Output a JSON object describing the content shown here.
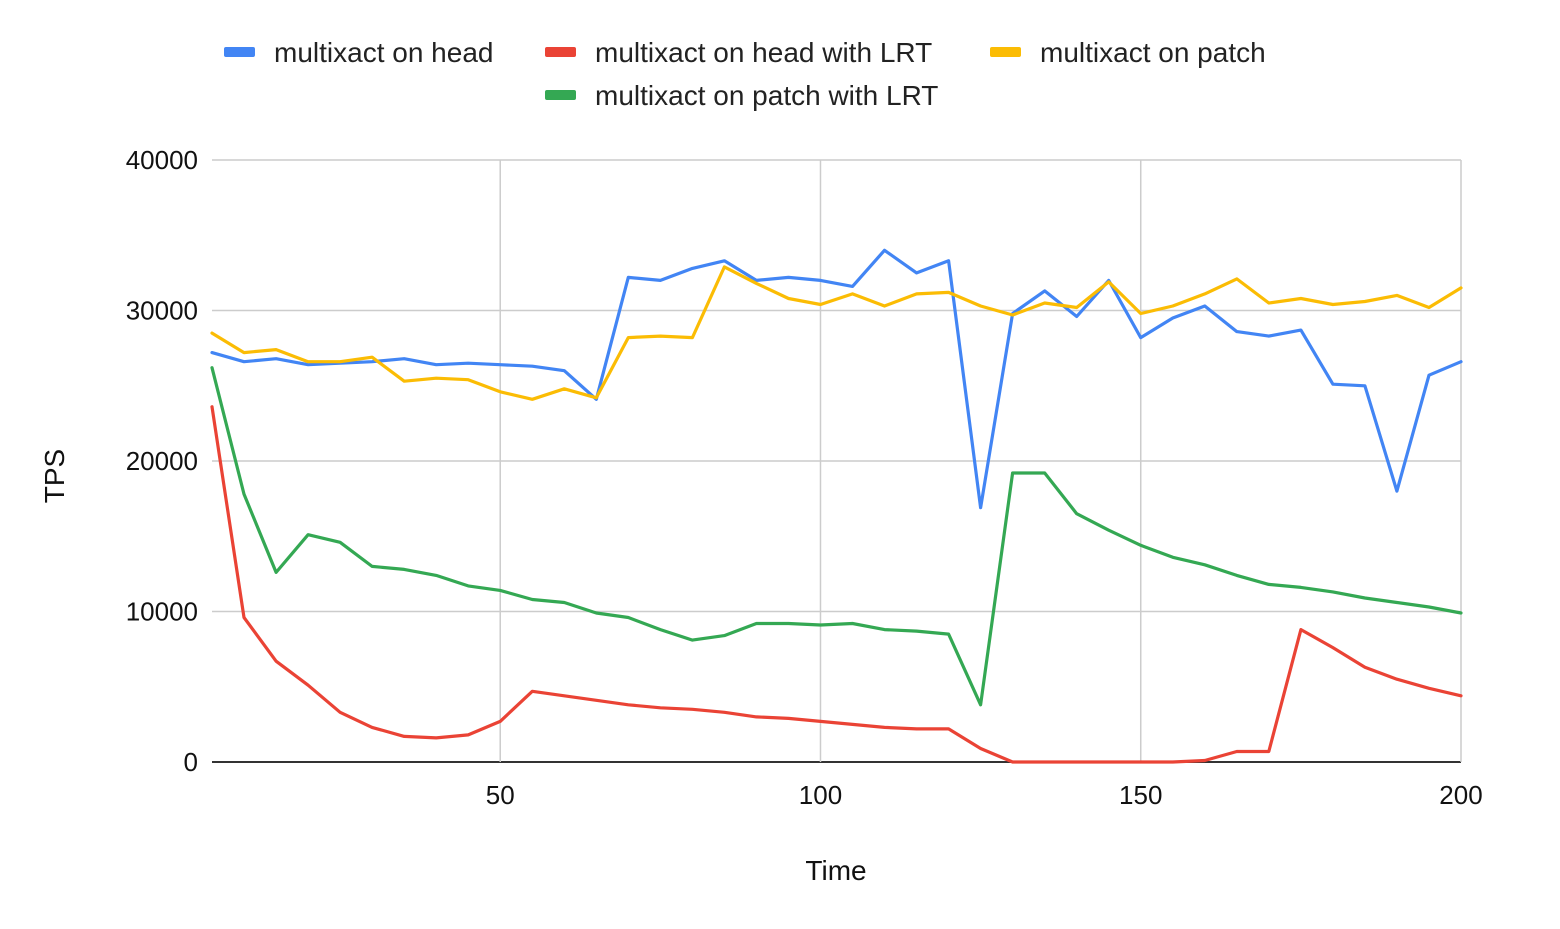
{
  "chart_data": {
    "type": "line",
    "title": "",
    "xlabel": "Time",
    "ylabel": "TPS",
    "xlim": [
      5,
      200
    ],
    "ylim": [
      0,
      40000
    ],
    "x_ticks": [
      50,
      100,
      150,
      200
    ],
    "y_ticks": [
      0,
      10000,
      20000,
      30000,
      40000
    ],
    "grid": true,
    "legend_position": "top",
    "x": [
      5,
      10,
      15,
      20,
      25,
      30,
      35,
      40,
      45,
      50,
      55,
      60,
      65,
      70,
      75,
      80,
      85,
      90,
      95,
      100,
      105,
      110,
      115,
      120,
      125,
      130,
      135,
      140,
      145,
      150,
      155,
      160,
      165,
      170,
      175,
      180,
      185,
      190,
      195,
      200
    ],
    "series": [
      {
        "name": "multixact on head",
        "color": "#4285f4",
        "values": [
          27200,
          26600,
          26800,
          26400,
          26500,
          26600,
          26800,
          26400,
          26500,
          26400,
          26300,
          26000,
          24100,
          32200,
          32000,
          32800,
          33300,
          32000,
          32200,
          32000,
          31600,
          34000,
          32500,
          33300,
          16900,
          29800,
          31300,
          29600,
          32000,
          28200,
          29500,
          30300,
          28600,
          28300,
          28700,
          25100,
          25000,
          18000,
          25700,
          26600
        ]
      },
      {
        "name": "multixact on head with LRT",
        "color": "#ea4335",
        "values": [
          23600,
          9600,
          6700,
          5100,
          3300,
          2300,
          1700,
          1600,
          1800,
          2700,
          4700,
          4400,
          4100,
          3800,
          3600,
          3500,
          3300,
          3000,
          2900,
          2700,
          2500,
          2300,
          2200,
          2200,
          900,
          0,
          0,
          0,
          0,
          0,
          0,
          100,
          700,
          700,
          8800,
          7600,
          6300,
          5500,
          4900,
          4400
        ]
      },
      {
        "name": "multixact on patch",
        "color": "#fbbc04",
        "values": [
          28500,
          27200,
          27400,
          26600,
          26600,
          26900,
          25300,
          25500,
          25400,
          24600,
          24100,
          24800,
          24200,
          28200,
          28300,
          28200,
          32900,
          31800,
          30800,
          30400,
          31100,
          30300,
          31100,
          31200,
          30300,
          29700,
          30500,
          30200,
          31900,
          29800,
          30300,
          31100,
          32100,
          30500,
          30800,
          30400,
          30600,
          31000,
          30200,
          31500
        ]
      },
      {
        "name": "multixact on patch with LRT",
        "color": "#34a853",
        "values": [
          26200,
          17800,
          12600,
          15100,
          14600,
          13000,
          12800,
          12400,
          11700,
          11400,
          10800,
          10600,
          9900,
          9600,
          8800,
          8100,
          8400,
          9200,
          9200,
          9100,
          9200,
          8800,
          8700,
          8500,
          3800,
          19200,
          19200,
          16500,
          15400,
          14400,
          13600,
          13100,
          12400,
          11800,
          11600,
          11300,
          10900,
          10600,
          10300,
          9900
        ]
      }
    ]
  }
}
